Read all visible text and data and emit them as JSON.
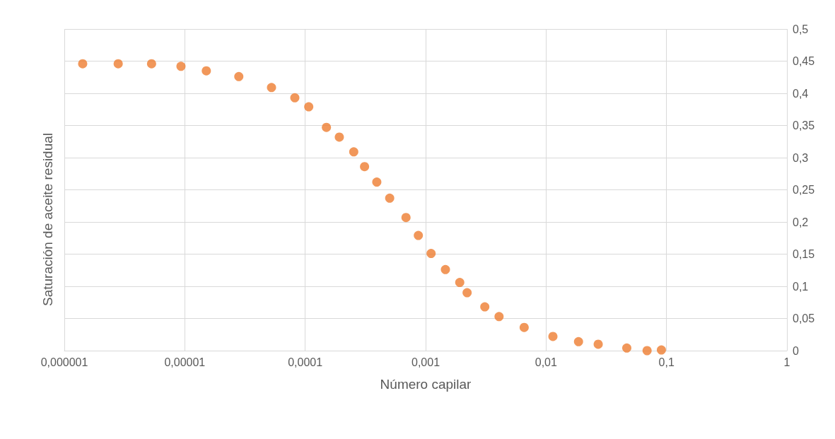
{
  "chart_data": {
    "type": "scatter",
    "xlabel": "Número capilar",
    "ylabel": "Saturación de aceite residual",
    "x": [
      1.42e-06,
      2.8e-06,
      5.3e-06,
      9.3e-06,
      1.51e-05,
      2.81e-05,
      5.25e-05,
      8.2e-05,
      0.000107,
      0.00015,
      0.000192,
      0.000253,
      0.000311,
      0.000393,
      0.000503,
      0.000687,
      0.00087,
      0.00111,
      0.00146,
      0.00192,
      0.00221,
      0.0031,
      0.00407,
      0.00658,
      0.0114,
      0.0186,
      0.0271,
      0.0468,
      0.069,
      0.0907
    ],
    "series": [
      {
        "color": "#ed7d31",
        "values": [
          0.446,
          0.446,
          0.446,
          0.442,
          0.435,
          0.426,
          0.409,
          0.393,
          0.379,
          0.347,
          0.332,
          0.309,
          0.286,
          0.262,
          0.237,
          0.207,
          0.179,
          0.151,
          0.126,
          0.106,
          0.09,
          0.068,
          0.053,
          0.036,
          0.022,
          0.014,
          0.01,
          0.004,
          0.0,
          0.001
        ]
      }
    ],
    "log": "x",
    "xlim": [
      1e-06,
      1
    ],
    "xticks": [
      {
        "value": 1e-06,
        "label": "0,000001"
      },
      {
        "value": 1e-05,
        "label": "0,00001"
      },
      {
        "value": 0.0001,
        "label": "0,0001"
      },
      {
        "value": 0.001,
        "label": "0,001"
      },
      {
        "value": 0.01,
        "label": "0,01"
      },
      {
        "value": 0.1,
        "label": "0,1"
      },
      1
    ],
    "ylim": [
      0,
      0.5
    ],
    "yticks": [
      0,
      {
        "value": 0.05,
        "label": "0,05"
      },
      {
        "value": 0.1,
        "label": "0,1"
      },
      {
        "value": 0.15,
        "label": "0,15"
      },
      {
        "value": 0.2,
        "label": "0,2"
      },
      {
        "value": 0.25,
        "label": "0,25"
      },
      {
        "value": 0.3,
        "label": "0,3"
      },
      {
        "value": 0.35,
        "label": "0,35"
      },
      {
        "value": 0.4,
        "label": "0,4"
      },
      {
        "value": 0.45,
        "label": "0,45"
      },
      {
        "value": 0.5,
        "label": "0,5"
      }
    ],
    "grid": true,
    "marker": "circle"
  }
}
